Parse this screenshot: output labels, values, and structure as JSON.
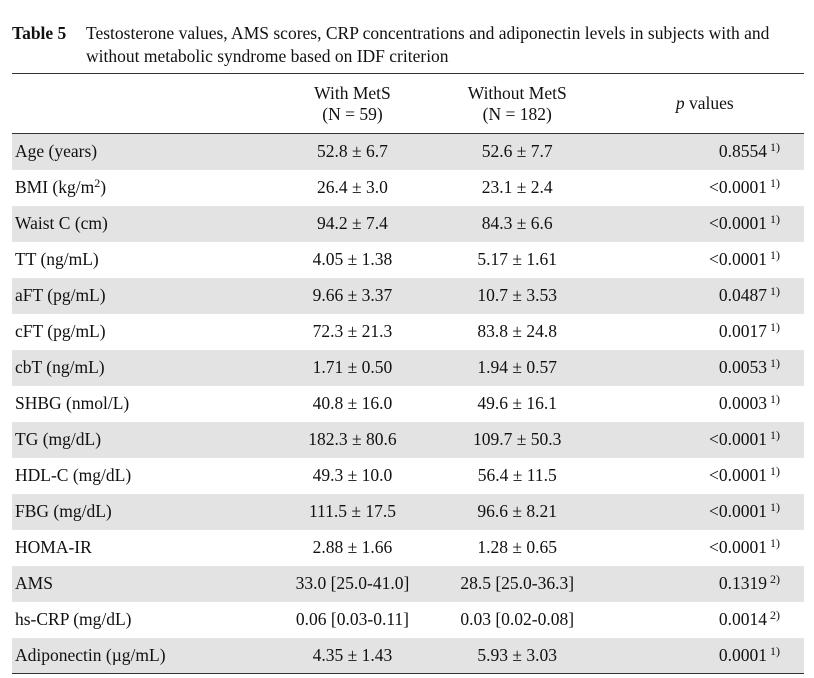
{
  "caption": {
    "label": "Table 5",
    "text": "Testosterone values, AMS scores, CRP concentrations and adiponectin levels in subjects with and without metabolic syndrome based on IDF criterion"
  },
  "header": {
    "col_with": "With MetS",
    "col_with_n": "(N = 59)",
    "col_without": "Without MetS",
    "col_without_n": "(N = 182)",
    "col_p_italic": "p",
    "col_p_rest": " values"
  },
  "rows": [
    {
      "label": "Age (years)",
      "with": "52.8 ± 6.7",
      "without": "52.6 ± 7.7",
      "p": "0.8554",
      "note": "1)"
    },
    {
      "label": "BMI (kg/m",
      "label_sup": "2",
      "label_end": ")",
      "with": "26.4 ± 3.0",
      "without": "23.1 ± 2.4",
      "p": "<0.0001",
      "note": "1)"
    },
    {
      "label": "Waist C (cm)",
      "with": "94.2 ± 7.4",
      "without": "84.3 ± 6.6",
      "p": "<0.0001",
      "note": "1)"
    },
    {
      "label": "TT (ng/mL)",
      "with": "4.05 ± 1.38",
      "without": "5.17 ± 1.61",
      "p": "<0.0001",
      "note": "1)"
    },
    {
      "label": "aFT (pg/mL)",
      "with": "9.66 ± 3.37",
      "without": "10.7 ± 3.53",
      "p": "0.0487",
      "note": "1)"
    },
    {
      "label": "cFT (pg/mL)",
      "with": "72.3 ± 21.3",
      "without": "83.8 ± 24.8",
      "p": "0.0017",
      "note": "1)"
    },
    {
      "label": "cbT (ng/mL)",
      "with": "1.71 ± 0.50",
      "without": "1.94 ± 0.57",
      "p": "0.0053",
      "note": "1)"
    },
    {
      "label": "SHBG (nmol/L)",
      "with": "40.8 ± 16.0",
      "without": "49.6 ± 16.1",
      "p": "0.0003",
      "note": "1)"
    },
    {
      "label": "TG (mg/dL)",
      "with": "182.3 ± 80.6",
      "without": "109.7 ± 50.3",
      "p": "<0.0001",
      "note": "1)"
    },
    {
      "label": "HDL-C (mg/dL)",
      "with": "49.3 ± 10.0",
      "without": "56.4 ± 11.5",
      "p": "<0.0001",
      "note": "1)"
    },
    {
      "label": "FBG (mg/dL)",
      "with": "111.5 ± 17.5",
      "without": "96.6 ± 8.21",
      "p": "<0.0001",
      "note": "1)"
    },
    {
      "label": "HOMA-IR",
      "with": "2.88 ± 1.66",
      "without": "1.28 ± 0.65",
      "p": "<0.0001",
      "note": "1)"
    },
    {
      "label": "AMS",
      "with": "33.0 [25.0-41.0]",
      "without": "28.5 [25.0-36.3]",
      "p": "0.1319",
      "note": "2)"
    },
    {
      "label": "hs-CRP (mg/dL)",
      "with": "0.06 [0.03-0.11]",
      "without": "0.03 [0.02-0.08]",
      "p": "0.0014",
      "note": "2)"
    },
    {
      "label": "Adiponectin (µg/mL)",
      "with": "4.35 ± 1.43",
      "without": "5.93 ± 3.03",
      "p": "0.0001",
      "note": "1)"
    }
  ]
}
